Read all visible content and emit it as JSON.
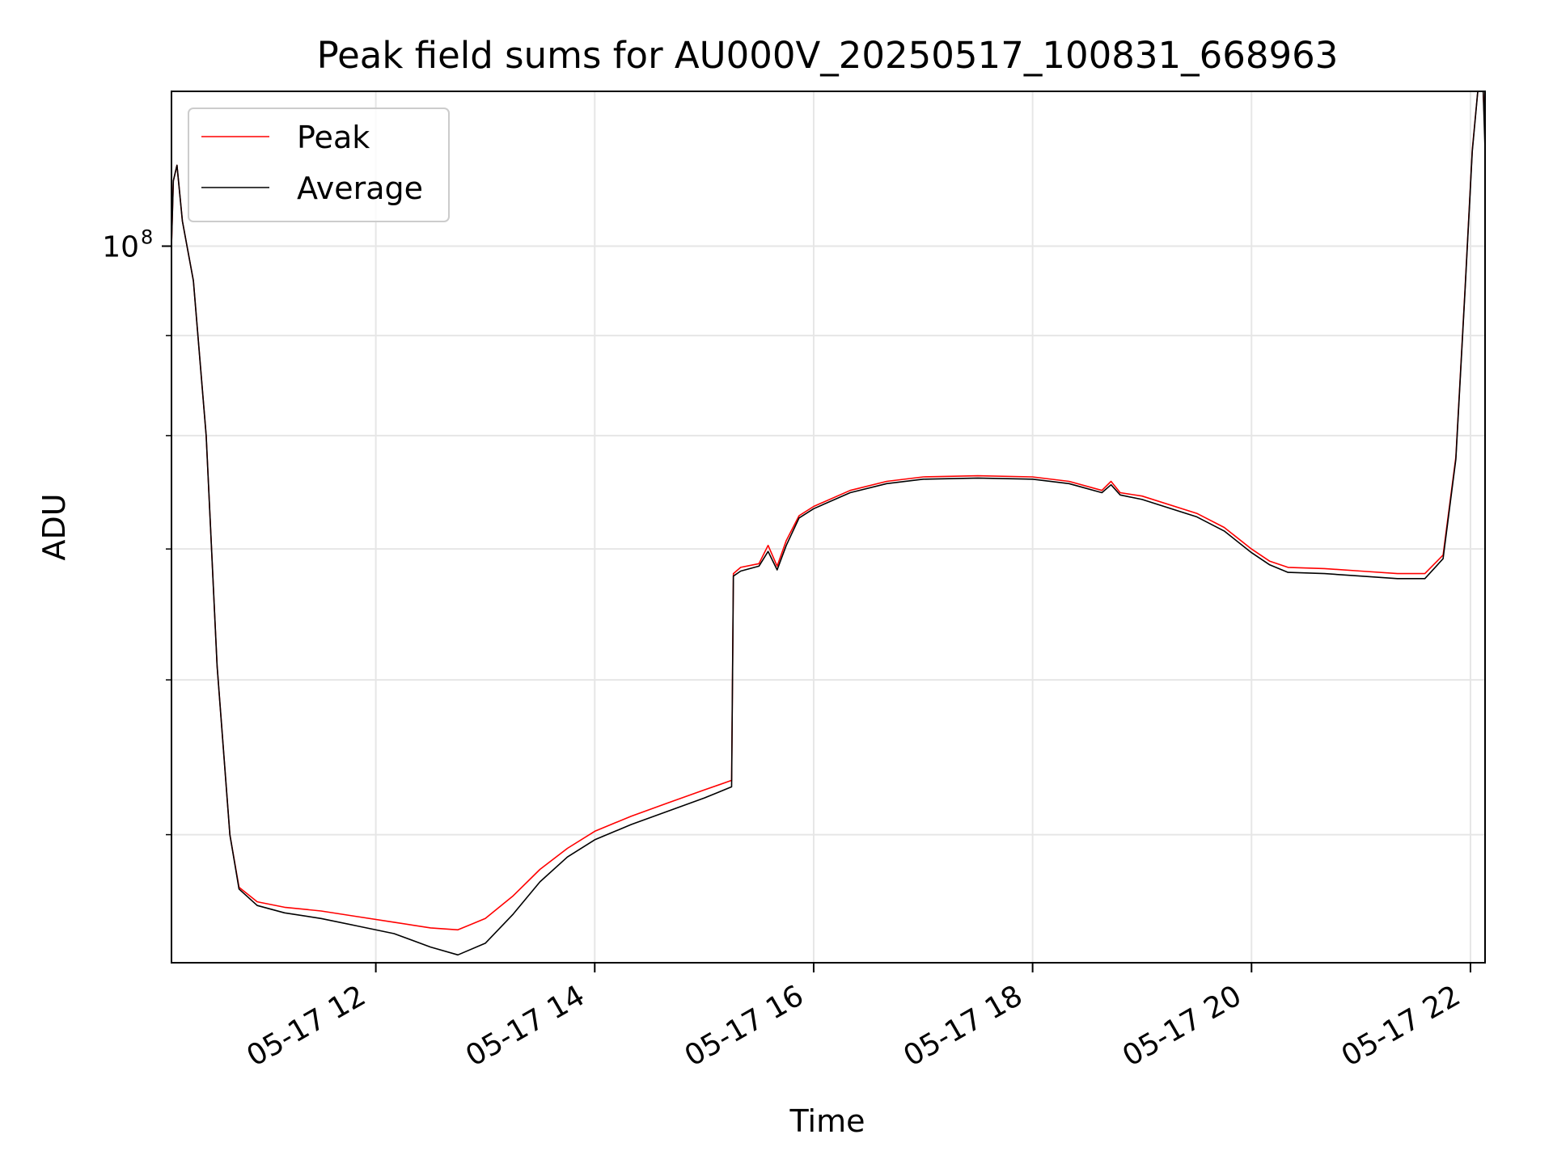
{
  "chart_data": {
    "type": "line",
    "title": "Peak field sums for AU000V_20250517_100831_668963",
    "xlabel": "Time",
    "ylabel": "ADU",
    "yscale": "log",
    "grid": true,
    "legend_position": "upper-left",
    "x_range": [
      "05-17 10:08",
      "05-17 22:08"
    ],
    "y_range": [
      43000000,
      120000000
    ],
    "x_ticks": [
      "05-17 12",
      "05-17 14",
      "05-17 16",
      "05-17 18",
      "05-17 20",
      "05-17 22"
    ],
    "x_tick_times": [
      "05-17 12:00",
      "05-17 14:00",
      "05-17 16:00",
      "05-17 18:00",
      "05-17 20:00",
      "05-17 22:00"
    ],
    "y_tick_labels": [
      {
        "value": 100000000,
        "label": "10",
        "exponent": "8"
      }
    ],
    "y_minor_ticks": [
      50000000,
      60000000,
      70000000,
      80000000,
      90000000
    ],
    "series": [
      {
        "name": "Peak",
        "color": "#ff0000",
        "points": [
          [
            "05-17 10:08",
            100000000
          ],
          [
            "05-17 10:09",
            108000000
          ],
          [
            "05-17 10:11",
            110000000
          ],
          [
            "05-17 10:14",
            103000000
          ],
          [
            "05-17 10:20",
            96000000
          ],
          [
            "05-17 10:27",
            80000000
          ],
          [
            "05-17 10:33",
            61000000
          ],
          [
            "05-17 10:40",
            50000000
          ],
          [
            "05-17 10:45",
            47000000
          ],
          [
            "05-17 10:55",
            46200000
          ],
          [
            "05-17 11:10",
            45900000
          ],
          [
            "05-17 11:30",
            45700000
          ],
          [
            "05-17 11:50",
            45400000
          ],
          [
            "05-17 12:10",
            45100000
          ],
          [
            "05-17 12:30",
            44800000
          ],
          [
            "05-17 12:45",
            44700000
          ],
          [
            "05-17 13:00",
            45300000
          ],
          [
            "05-17 13:15",
            46500000
          ],
          [
            "05-17 13:30",
            48000000
          ],
          [
            "05-17 13:45",
            49200000
          ],
          [
            "05-17 14:00",
            50200000
          ],
          [
            "05-17 14:20",
            51100000
          ],
          [
            "05-17 14:40",
            51900000
          ],
          [
            "05-17 15:00",
            52700000
          ],
          [
            "05-17 15:15",
            53300000
          ],
          [
            "05-17 15:16",
            68000000
          ],
          [
            "05-17 15:20",
            68500000
          ],
          [
            "05-17 15:30",
            68800000
          ],
          [
            "05-17 15:35",
            70300000
          ],
          [
            "05-17 15:40",
            68600000
          ],
          [
            "05-17 15:45",
            70700000
          ],
          [
            "05-17 15:52",
            72800000
          ],
          [
            "05-17 16:00",
            73600000
          ],
          [
            "05-17 16:20",
            75000000
          ],
          [
            "05-17 16:40",
            75800000
          ],
          [
            "05-17 17:00",
            76200000
          ],
          [
            "05-17 17:30",
            76300000
          ],
          [
            "05-17 18:00",
            76200000
          ],
          [
            "05-17 18:20",
            75800000
          ],
          [
            "05-17 18:38",
            75000000
          ],
          [
            "05-17 18:43",
            75800000
          ],
          [
            "05-17 18:48",
            74800000
          ],
          [
            "05-17 19:00",
            74500000
          ],
          [
            "05-17 19:30",
            73000000
          ],
          [
            "05-17 19:45",
            71800000
          ],
          [
            "05-17 20:00",
            70000000
          ],
          [
            "05-17 20:10",
            69000000
          ],
          [
            "05-17 20:20",
            68500000
          ],
          [
            "05-17 20:40",
            68400000
          ],
          [
            "05-17 21:00",
            68200000
          ],
          [
            "05-17 21:20",
            68000000
          ],
          [
            "05-17 21:35",
            68000000
          ],
          [
            "05-17 21:45",
            69500000
          ],
          [
            "05-17 21:52",
            78000000
          ],
          [
            "05-17 21:57",
            95000000
          ],
          [
            "05-17 22:01",
            112000000
          ],
          [
            "05-17 22:04",
            120000000
          ],
          [
            "05-17 22:07",
            120000000
          ],
          [
            "05-17 22:08",
            114000000
          ]
        ]
      },
      {
        "name": "Average",
        "color": "#000000",
        "points": [
          [
            "05-17 10:08",
            100000000
          ],
          [
            "05-17 10:09",
            108000000
          ],
          [
            "05-17 10:11",
            110000000
          ],
          [
            "05-17 10:14",
            103000000
          ],
          [
            "05-17 10:20",
            96000000
          ],
          [
            "05-17 10:27",
            80000000
          ],
          [
            "05-17 10:33",
            61000000
          ],
          [
            "05-17 10:40",
            50000000
          ],
          [
            "05-17 10:45",
            46900000
          ],
          [
            "05-17 10:55",
            46000000
          ],
          [
            "05-17 11:10",
            45600000
          ],
          [
            "05-17 11:30",
            45300000
          ],
          [
            "05-17 11:50",
            44900000
          ],
          [
            "05-17 12:10",
            44500000
          ],
          [
            "05-17 12:30",
            43800000
          ],
          [
            "05-17 12:45",
            43400000
          ],
          [
            "05-17 13:00",
            44000000
          ],
          [
            "05-17 13:15",
            45500000
          ],
          [
            "05-17 13:30",
            47300000
          ],
          [
            "05-17 13:45",
            48700000
          ],
          [
            "05-17 14:00",
            49700000
          ],
          [
            "05-17 14:20",
            50600000
          ],
          [
            "05-17 14:40",
            51400000
          ],
          [
            "05-17 15:00",
            52200000
          ],
          [
            "05-17 15:15",
            52900000
          ],
          [
            "05-17 15:16",
            67800000
          ],
          [
            "05-17 15:20",
            68200000
          ],
          [
            "05-17 15:30",
            68600000
          ],
          [
            "05-17 15:35",
            69800000
          ],
          [
            "05-17 15:40",
            68300000
          ],
          [
            "05-17 15:45",
            70300000
          ],
          [
            "05-17 15:52",
            72600000
          ],
          [
            "05-17 16:00",
            73400000
          ],
          [
            "05-17 16:20",
            74800000
          ],
          [
            "05-17 16:40",
            75600000
          ],
          [
            "05-17 17:00",
            76000000
          ],
          [
            "05-17 17:30",
            76100000
          ],
          [
            "05-17 18:00",
            76000000
          ],
          [
            "05-17 18:20",
            75600000
          ],
          [
            "05-17 18:38",
            74800000
          ],
          [
            "05-17 18:43",
            75500000
          ],
          [
            "05-17 18:48",
            74600000
          ],
          [
            "05-17 19:00",
            74200000
          ],
          [
            "05-17 19:30",
            72700000
          ],
          [
            "05-17 19:45",
            71500000
          ],
          [
            "05-17 20:00",
            69700000
          ],
          [
            "05-17 20:10",
            68700000
          ],
          [
            "05-17 20:20",
            68100000
          ],
          [
            "05-17 20:40",
            68000000
          ],
          [
            "05-17 21:00",
            67800000
          ],
          [
            "05-17 21:20",
            67600000
          ],
          [
            "05-17 21:35",
            67600000
          ],
          [
            "05-17 21:45",
            69200000
          ],
          [
            "05-17 21:52",
            77800000
          ],
          [
            "05-17 21:57",
            94800000
          ],
          [
            "05-17 22:01",
            111800000
          ],
          [
            "05-17 22:04",
            120000000
          ],
          [
            "05-17 22:07",
            120000000
          ],
          [
            "05-17 22:08",
            112000000
          ]
        ]
      }
    ]
  }
}
